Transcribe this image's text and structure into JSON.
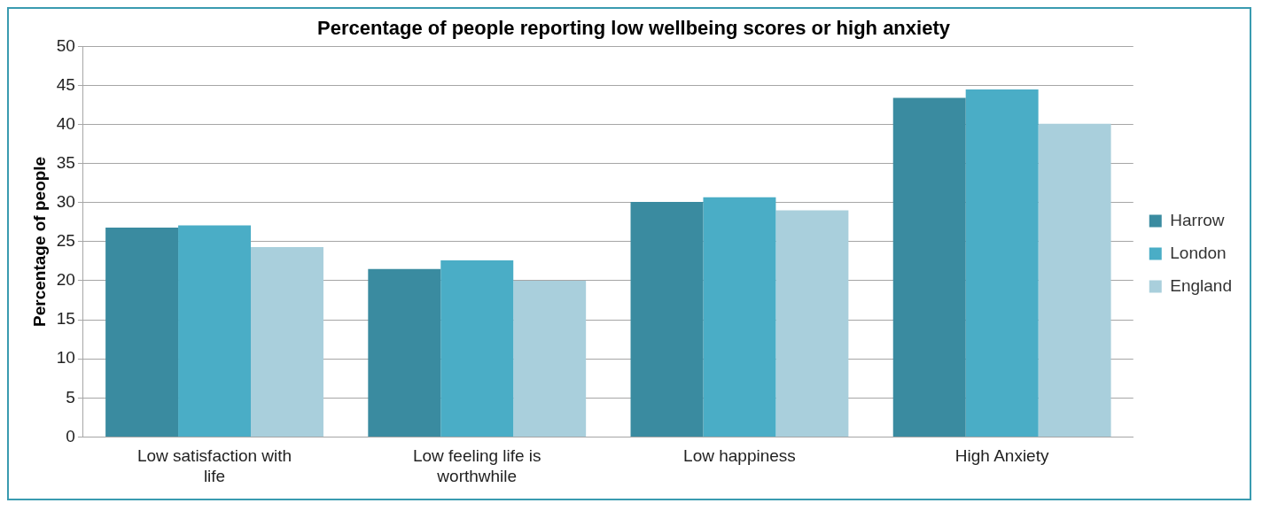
{
  "chart_data": {
    "type": "bar",
    "title": "Percentage of people reporting low wellbeing scores or high anxiety",
    "ylabel": "Percentage of people",
    "categories": [
      "Low satisfaction with life",
      "Low feeling life is worthwhile",
      "Low happiness",
      "High Anxiety"
    ],
    "series": [
      {
        "name": "Harrow",
        "color": "#3a8ba0",
        "values": [
          26.8,
          21.5,
          30.1,
          43.4
        ]
      },
      {
        "name": "London",
        "color": "#4aadc6",
        "values": [
          27.1,
          22.6,
          30.7,
          44.5
        ]
      },
      {
        "name": "England",
        "color": "#a9cfdc",
        "values": [
          24.3,
          20.0,
          29.0,
          40.1
        ]
      }
    ],
    "ylim": [
      0,
      50
    ],
    "yticks": [
      0,
      5,
      10,
      15,
      20,
      25,
      30,
      35,
      40,
      45,
      50
    ],
    "grid": "y",
    "legend": "right"
  }
}
